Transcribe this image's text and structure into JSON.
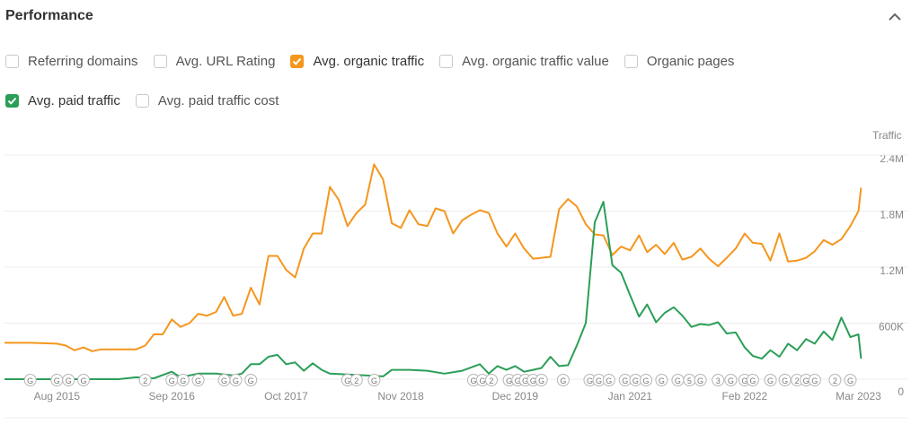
{
  "panel": {
    "title": "Performance",
    "metrics": [
      {
        "label": "Referring domains",
        "checked": false,
        "color": ""
      },
      {
        "label": "Avg. URL Rating",
        "checked": false,
        "color": ""
      },
      {
        "label": "Avg. organic traffic",
        "checked": true,
        "color": "#f5961d"
      },
      {
        "label": "Avg. organic traffic value",
        "checked": false,
        "color": ""
      },
      {
        "label": "Organic pages",
        "checked": false,
        "color": ""
      },
      {
        "label": "Avg. paid traffic",
        "checked": true,
        "color": "#2b9e58"
      },
      {
        "label": "Avg. paid traffic cost",
        "checked": false,
        "color": ""
      }
    ]
  },
  "chart_data": {
    "type": "line",
    "ylabel": "Traffic",
    "ylim": [
      0,
      2400000
    ],
    "y_ticks": [
      {
        "value": 0,
        "label": "0"
      },
      {
        "value": 600000,
        "label": "600K"
      },
      {
        "value": 1200000,
        "label": "1.2M"
      },
      {
        "value": 1800000,
        "label": "1.8M"
      },
      {
        "value": 2400000,
        "label": "2.4M"
      }
    ],
    "x_range": [
      "2015-02-01",
      "2023-03-15"
    ],
    "x_ticks": [
      {
        "date": "2015-08-01",
        "label": "Aug 2015"
      },
      {
        "date": "2016-09-01",
        "label": "Sep 2016"
      },
      {
        "date": "2017-10-01",
        "label": "Oct 2017"
      },
      {
        "date": "2018-11-01",
        "label": "Nov 2018"
      },
      {
        "date": "2019-12-01",
        "label": "Dec 2019"
      },
      {
        "date": "2021-01-01",
        "label": "Jan 2021"
      },
      {
        "date": "2022-02-01",
        "label": "Feb 2022"
      },
      {
        "date": "2023-03-01",
        "label": "Mar 2023"
      }
    ],
    "grid": true,
    "series": [
      {
        "name": "Avg. organic traffic",
        "color": "#f5961d",
        "points": [
          [
            "2015-02-01",
            390000
          ],
          [
            "2015-05-01",
            390000
          ],
          [
            "2015-08-01",
            380000
          ],
          [
            "2015-09-01",
            360000
          ],
          [
            "2015-10-01",
            310000
          ],
          [
            "2015-11-01",
            340000
          ],
          [
            "2015-12-01",
            300000
          ],
          [
            "2016-01-01",
            320000
          ],
          [
            "2016-03-01",
            320000
          ],
          [
            "2016-05-01",
            320000
          ],
          [
            "2016-06-01",
            360000
          ],
          [
            "2016-07-01",
            480000
          ],
          [
            "2016-08-01",
            480000
          ],
          [
            "2016-09-01",
            640000
          ],
          [
            "2016-10-01",
            560000
          ],
          [
            "2016-11-01",
            600000
          ],
          [
            "2016-12-01",
            700000
          ],
          [
            "2017-01-01",
            680000
          ],
          [
            "2017-02-01",
            720000
          ],
          [
            "2017-03-01",
            880000
          ],
          [
            "2017-04-01",
            680000
          ],
          [
            "2017-05-01",
            700000
          ],
          [
            "2017-06-01",
            980000
          ],
          [
            "2017-07-01",
            800000
          ],
          [
            "2017-08-01",
            1320000
          ],
          [
            "2017-09-01",
            1320000
          ],
          [
            "2017-10-01",
            1170000
          ],
          [
            "2017-11-01",
            1090000
          ],
          [
            "2017-12-01",
            1400000
          ],
          [
            "2018-01-01",
            1560000
          ],
          [
            "2018-02-01",
            1560000
          ],
          [
            "2018-03-01",
            2060000
          ],
          [
            "2018-04-01",
            1920000
          ],
          [
            "2018-05-01",
            1640000
          ],
          [
            "2018-06-01",
            1780000
          ],
          [
            "2018-07-01",
            1870000
          ],
          [
            "2018-08-01",
            2300000
          ],
          [
            "2018-09-01",
            2140000
          ],
          [
            "2018-10-01",
            1670000
          ],
          [
            "2018-11-01",
            1620000
          ],
          [
            "2018-12-01",
            1810000
          ],
          [
            "2019-01-01",
            1660000
          ],
          [
            "2019-02-01",
            1640000
          ],
          [
            "2019-03-01",
            1830000
          ],
          [
            "2019-04-01",
            1800000
          ],
          [
            "2019-05-01",
            1560000
          ],
          [
            "2019-06-01",
            1700000
          ],
          [
            "2019-07-01",
            1760000
          ],
          [
            "2019-08-01",
            1810000
          ],
          [
            "2019-09-01",
            1780000
          ],
          [
            "2019-10-01",
            1560000
          ],
          [
            "2019-11-01",
            1420000
          ],
          [
            "2019-12-01",
            1560000
          ],
          [
            "2020-01-01",
            1400000
          ],
          [
            "2020-02-01",
            1290000
          ],
          [
            "2020-03-01",
            1300000
          ],
          [
            "2020-04-01",
            1310000
          ],
          [
            "2020-05-01",
            1820000
          ],
          [
            "2020-06-01",
            1930000
          ],
          [
            "2020-07-01",
            1850000
          ],
          [
            "2020-08-01",
            1660000
          ],
          [
            "2020-09-01",
            1550000
          ],
          [
            "2020-10-01",
            1540000
          ],
          [
            "2020-11-01",
            1330000
          ],
          [
            "2020-12-01",
            1420000
          ],
          [
            "2021-01-01",
            1380000
          ],
          [
            "2021-02-01",
            1540000
          ],
          [
            "2021-03-01",
            1360000
          ],
          [
            "2021-04-01",
            1440000
          ],
          [
            "2021-05-01",
            1340000
          ],
          [
            "2021-06-01",
            1460000
          ],
          [
            "2021-07-01",
            1280000
          ],
          [
            "2021-08-01",
            1310000
          ],
          [
            "2021-09-01",
            1400000
          ],
          [
            "2021-10-01",
            1290000
          ],
          [
            "2021-11-01",
            1210000
          ],
          [
            "2021-12-01",
            1300000
          ],
          [
            "2022-01-01",
            1400000
          ],
          [
            "2022-02-01",
            1560000
          ],
          [
            "2022-03-01",
            1460000
          ],
          [
            "2022-04-01",
            1450000
          ],
          [
            "2022-05-01",
            1270000
          ],
          [
            "2022-06-01",
            1560000
          ],
          [
            "2022-07-01",
            1260000
          ],
          [
            "2022-08-01",
            1270000
          ],
          [
            "2022-09-01",
            1300000
          ],
          [
            "2022-10-01",
            1370000
          ],
          [
            "2022-11-01",
            1490000
          ],
          [
            "2022-12-01",
            1440000
          ],
          [
            "2023-01-01",
            1500000
          ],
          [
            "2023-02-01",
            1640000
          ],
          [
            "2023-03-01",
            1800000
          ],
          [
            "2023-03-10",
            2050000
          ]
        ]
      },
      {
        "name": "Avg. paid traffic",
        "color": "#2b9e58",
        "points": [
          [
            "2015-02-01",
            0
          ],
          [
            "2016-03-01",
            0
          ],
          [
            "2016-05-01",
            20000
          ],
          [
            "2016-07-01",
            10000
          ],
          [
            "2016-09-01",
            80000
          ],
          [
            "2016-10-01",
            20000
          ],
          [
            "2016-12-01",
            60000
          ],
          [
            "2017-02-01",
            60000
          ],
          [
            "2017-04-01",
            40000
          ],
          [
            "2017-05-01",
            60000
          ],
          [
            "2017-06-01",
            160000
          ],
          [
            "2017-07-01",
            160000
          ],
          [
            "2017-08-01",
            240000
          ],
          [
            "2017-09-01",
            260000
          ],
          [
            "2017-10-01",
            160000
          ],
          [
            "2017-11-01",
            180000
          ],
          [
            "2017-12-01",
            90000
          ],
          [
            "2018-01-01",
            170000
          ],
          [
            "2018-02-01",
            100000
          ],
          [
            "2018-03-01",
            60000
          ],
          [
            "2018-05-01",
            50000
          ],
          [
            "2018-07-01",
            40000
          ],
          [
            "2018-09-01",
            30000
          ],
          [
            "2018-10-01",
            100000
          ],
          [
            "2018-12-01",
            100000
          ],
          [
            "2019-02-01",
            90000
          ],
          [
            "2019-04-01",
            60000
          ],
          [
            "2019-06-01",
            90000
          ],
          [
            "2019-08-01",
            160000
          ],
          [
            "2019-09-01",
            60000
          ],
          [
            "2019-10-01",
            140000
          ],
          [
            "2019-11-01",
            100000
          ],
          [
            "2019-12-01",
            140000
          ],
          [
            "2020-01-01",
            80000
          ],
          [
            "2020-02-01",
            100000
          ],
          [
            "2020-03-01",
            120000
          ],
          [
            "2020-04-01",
            240000
          ],
          [
            "2020-05-01",
            140000
          ],
          [
            "2020-06-01",
            150000
          ],
          [
            "2020-07-01",
            360000
          ],
          [
            "2020-08-01",
            600000
          ],
          [
            "2020-09-01",
            1680000
          ],
          [
            "2020-10-01",
            1900000
          ],
          [
            "2020-11-01",
            1220000
          ],
          [
            "2020-12-01",
            1140000
          ],
          [
            "2021-01-01",
            900000
          ],
          [
            "2021-02-01",
            670000
          ],
          [
            "2021-03-01",
            800000
          ],
          [
            "2021-04-01",
            610000
          ],
          [
            "2021-05-01",
            710000
          ],
          [
            "2021-06-01",
            770000
          ],
          [
            "2021-07-01",
            680000
          ],
          [
            "2021-08-01",
            560000
          ],
          [
            "2021-09-01",
            590000
          ],
          [
            "2021-10-01",
            580000
          ],
          [
            "2021-11-01",
            610000
          ],
          [
            "2021-12-01",
            490000
          ],
          [
            "2022-01-01",
            500000
          ],
          [
            "2022-02-01",
            340000
          ],
          [
            "2022-03-01",
            250000
          ],
          [
            "2022-04-01",
            220000
          ],
          [
            "2022-05-01",
            310000
          ],
          [
            "2022-06-01",
            240000
          ],
          [
            "2022-07-01",
            380000
          ],
          [
            "2022-08-01",
            310000
          ],
          [
            "2022-09-01",
            430000
          ],
          [
            "2022-10-01",
            380000
          ],
          [
            "2022-11-01",
            510000
          ],
          [
            "2022-12-01",
            420000
          ],
          [
            "2023-01-01",
            660000
          ],
          [
            "2023-02-01",
            450000
          ],
          [
            "2023-03-01",
            480000
          ],
          [
            "2023-03-10",
            220000
          ]
        ]
      }
    ],
    "annotations": [
      {
        "date": "2015-05-01",
        "label": "G"
      },
      {
        "date": "2015-08-01",
        "label": "G"
      },
      {
        "date": "2015-09-10",
        "label": "G"
      },
      {
        "date": "2015-11-01",
        "label": "G"
      },
      {
        "date": "2016-09-01",
        "label": "G"
      },
      {
        "date": "2016-06-01",
        "label": "2"
      },
      {
        "date": "2016-10-10",
        "label": "G"
      },
      {
        "date": "2016-12-01",
        "label": "G"
      },
      {
        "date": "2017-03-01",
        "label": "G"
      },
      {
        "date": "2017-04-10",
        "label": "G"
      },
      {
        "date": "2017-06-01",
        "label": "G"
      },
      {
        "date": "2018-05-01",
        "label": "G"
      },
      {
        "date": "2018-06-01",
        "label": "2"
      },
      {
        "date": "2018-08-01",
        "label": "G"
      },
      {
        "date": "2019-07-10",
        "label": "G"
      },
      {
        "date": "2019-08-10",
        "label": "G"
      },
      {
        "date": "2019-09-10",
        "label": "2"
      },
      {
        "date": "2019-11-10",
        "label": "G"
      },
      {
        "date": "2019-12-10",
        "label": "G"
      },
      {
        "date": "2020-01-05",
        "label": "G"
      },
      {
        "date": "2020-02-01",
        "label": "G"
      },
      {
        "date": "2020-03-01",
        "label": "G"
      },
      {
        "date": "2020-05-15",
        "label": "G"
      },
      {
        "date": "2020-08-15",
        "label": "G"
      },
      {
        "date": "2020-09-15",
        "label": "G"
      },
      {
        "date": "2020-10-20",
        "label": "G"
      },
      {
        "date": "2020-12-15",
        "label": "G"
      },
      {
        "date": "2021-01-20",
        "label": "G"
      },
      {
        "date": "2021-02-25",
        "label": "G"
      },
      {
        "date": "2021-04-20",
        "label": "G"
      },
      {
        "date": "2021-06-15",
        "label": "G"
      },
      {
        "date": "2021-07-25",
        "label": "5"
      },
      {
        "date": "2021-09-01",
        "label": "G"
      },
      {
        "date": "2021-11-01",
        "label": "3"
      },
      {
        "date": "2021-12-15",
        "label": "G"
      },
      {
        "date": "2022-02-01",
        "label": "G"
      },
      {
        "date": "2022-03-01",
        "label": "G"
      },
      {
        "date": "2022-05-01",
        "label": "G"
      },
      {
        "date": "2022-06-20",
        "label": "G"
      },
      {
        "date": "2022-08-01",
        "label": "2"
      },
      {
        "date": "2022-09-01",
        "label": "G"
      },
      {
        "date": "2022-10-01",
        "label": "G"
      },
      {
        "date": "2022-12-10",
        "label": "2"
      },
      {
        "date": "2023-02-01",
        "label": "G"
      }
    ]
  }
}
